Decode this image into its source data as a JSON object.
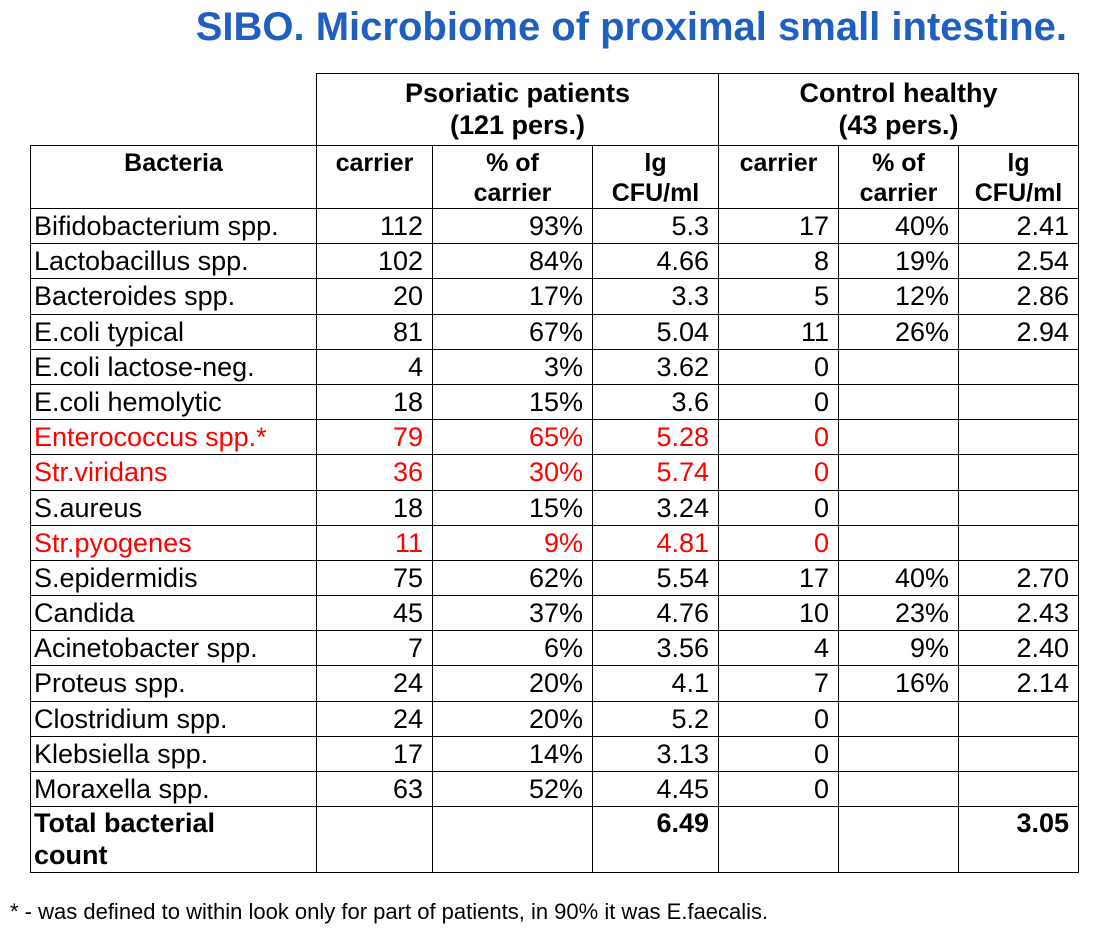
{
  "title": "SIBO. Microbiome of proximal small intestine.",
  "colors": {
    "title": "#1f5fbf",
    "highlight": "#ff0000",
    "text": "#000000"
  },
  "groups": [
    {
      "line1": "Psoriatic patients",
      "line2": "(121 pers.)"
    },
    {
      "line1": "Control healthy",
      "line2": "(43 pers.)"
    }
  ],
  "columns": {
    "bacteria": "Bacteria",
    "carrier": "carrier",
    "pct_line1": "% of",
    "pct_line2": "carrier",
    "lg_line1": "lg",
    "lg_line2": "CFU/ml"
  },
  "rows": [
    {
      "name": "Bifidobacterium spp.",
      "p_carrier": "112",
      "p_pct": "93%",
      "p_lg": "5.3",
      "c_carrier": "17",
      "c_pct": "40%",
      "c_lg": "2.41",
      "highlight": false
    },
    {
      "name": "Lactobacillus spp.",
      "p_carrier": "102",
      "p_pct": "84%",
      "p_lg": "4.66",
      "c_carrier": "8",
      "c_pct": "19%",
      "c_lg": "2.54",
      "highlight": false
    },
    {
      "name": "Bacteroides spp.",
      "p_carrier": "20",
      "p_pct": "17%",
      "p_lg": "3.3",
      "c_carrier": "5",
      "c_pct": "12%",
      "c_lg": "2.86",
      "highlight": false
    },
    {
      "name": "E.coli typical",
      "p_carrier": "81",
      "p_pct": "67%",
      "p_lg": "5.04",
      "c_carrier": "11",
      "c_pct": "26%",
      "c_lg": "2.94",
      "highlight": false
    },
    {
      "name": "E.coli lactose-neg.",
      "p_carrier": "4",
      "p_pct": "3%",
      "p_lg": "3.62",
      "c_carrier": "0",
      "c_pct": "",
      "c_lg": "",
      "highlight": false
    },
    {
      "name": "E.coli hemolytic",
      "p_carrier": "18",
      "p_pct": "15%",
      "p_lg": "3.6",
      "c_carrier": "0",
      "c_pct": "",
      "c_lg": "",
      "highlight": false
    },
    {
      "name": "Enterococcus spp.*",
      "p_carrier": "79",
      "p_pct": "65%",
      "p_lg": "5.28",
      "c_carrier": "0",
      "c_pct": "",
      "c_lg": "",
      "highlight": true
    },
    {
      "name": "Str.viridans",
      "p_carrier": "36",
      "p_pct": "30%",
      "p_lg": "5.74",
      "c_carrier": "0",
      "c_pct": "",
      "c_lg": "",
      "highlight": true
    },
    {
      "name": "S.aureus",
      "p_carrier": "18",
      "p_pct": "15%",
      "p_lg": "3.24",
      "c_carrier": "0",
      "c_pct": "",
      "c_lg": "",
      "highlight": false
    },
    {
      "name": "Str.pyogenes",
      "p_carrier": "11",
      "p_pct": "9%",
      "p_lg": "4.81",
      "c_carrier": "0",
      "c_pct": "",
      "c_lg": "",
      "highlight": true
    },
    {
      "name": "S.epidermidis",
      "p_carrier": "75",
      "p_pct": "62%",
      "p_lg": "5.54",
      "c_carrier": "17",
      "c_pct": "40%",
      "c_lg": "2.70",
      "highlight": false
    },
    {
      "name": "Candida",
      "p_carrier": "45",
      "p_pct": "37%",
      "p_lg": "4.76",
      "c_carrier": "10",
      "c_pct": "23%",
      "c_lg": "2.43",
      "highlight": false
    },
    {
      "name": "Acinetobacter spp.",
      "p_carrier": "7",
      "p_pct": "6%",
      "p_lg": "3.56",
      "c_carrier": "4",
      "c_pct": "9%",
      "c_lg": "2.40",
      "highlight": false
    },
    {
      "name": "Proteus spp.",
      "p_carrier": "24",
      "p_pct": "20%",
      "p_lg": "4.1",
      "c_carrier": "7",
      "c_pct": "16%",
      "c_lg": "2.14",
      "highlight": false
    },
    {
      "name": "Clostridium spp.",
      "p_carrier": "24",
      "p_pct": "20%",
      "p_lg": "5.2",
      "c_carrier": "0",
      "c_pct": "",
      "c_lg": "",
      "highlight": false
    },
    {
      "name": "Klebsiella spp.",
      "p_carrier": "17",
      "p_pct": "14%",
      "p_lg": "3.13",
      "c_carrier": "0",
      "c_pct": "",
      "c_lg": "",
      "highlight": false
    },
    {
      "name": "Moraxella spp.",
      "p_carrier": "63",
      "p_pct": "52%",
      "p_lg": "4.45",
      "c_carrier": "0",
      "c_pct": "",
      "c_lg": "",
      "highlight": false
    }
  ],
  "total": {
    "label_line1": "Total bacterial",
    "label_line2": "count",
    "p_lg": "6.49",
    "c_lg": "3.05"
  },
  "footnote": "* - was defined to within look only for part of patients, in 90% it was E.faecalis."
}
